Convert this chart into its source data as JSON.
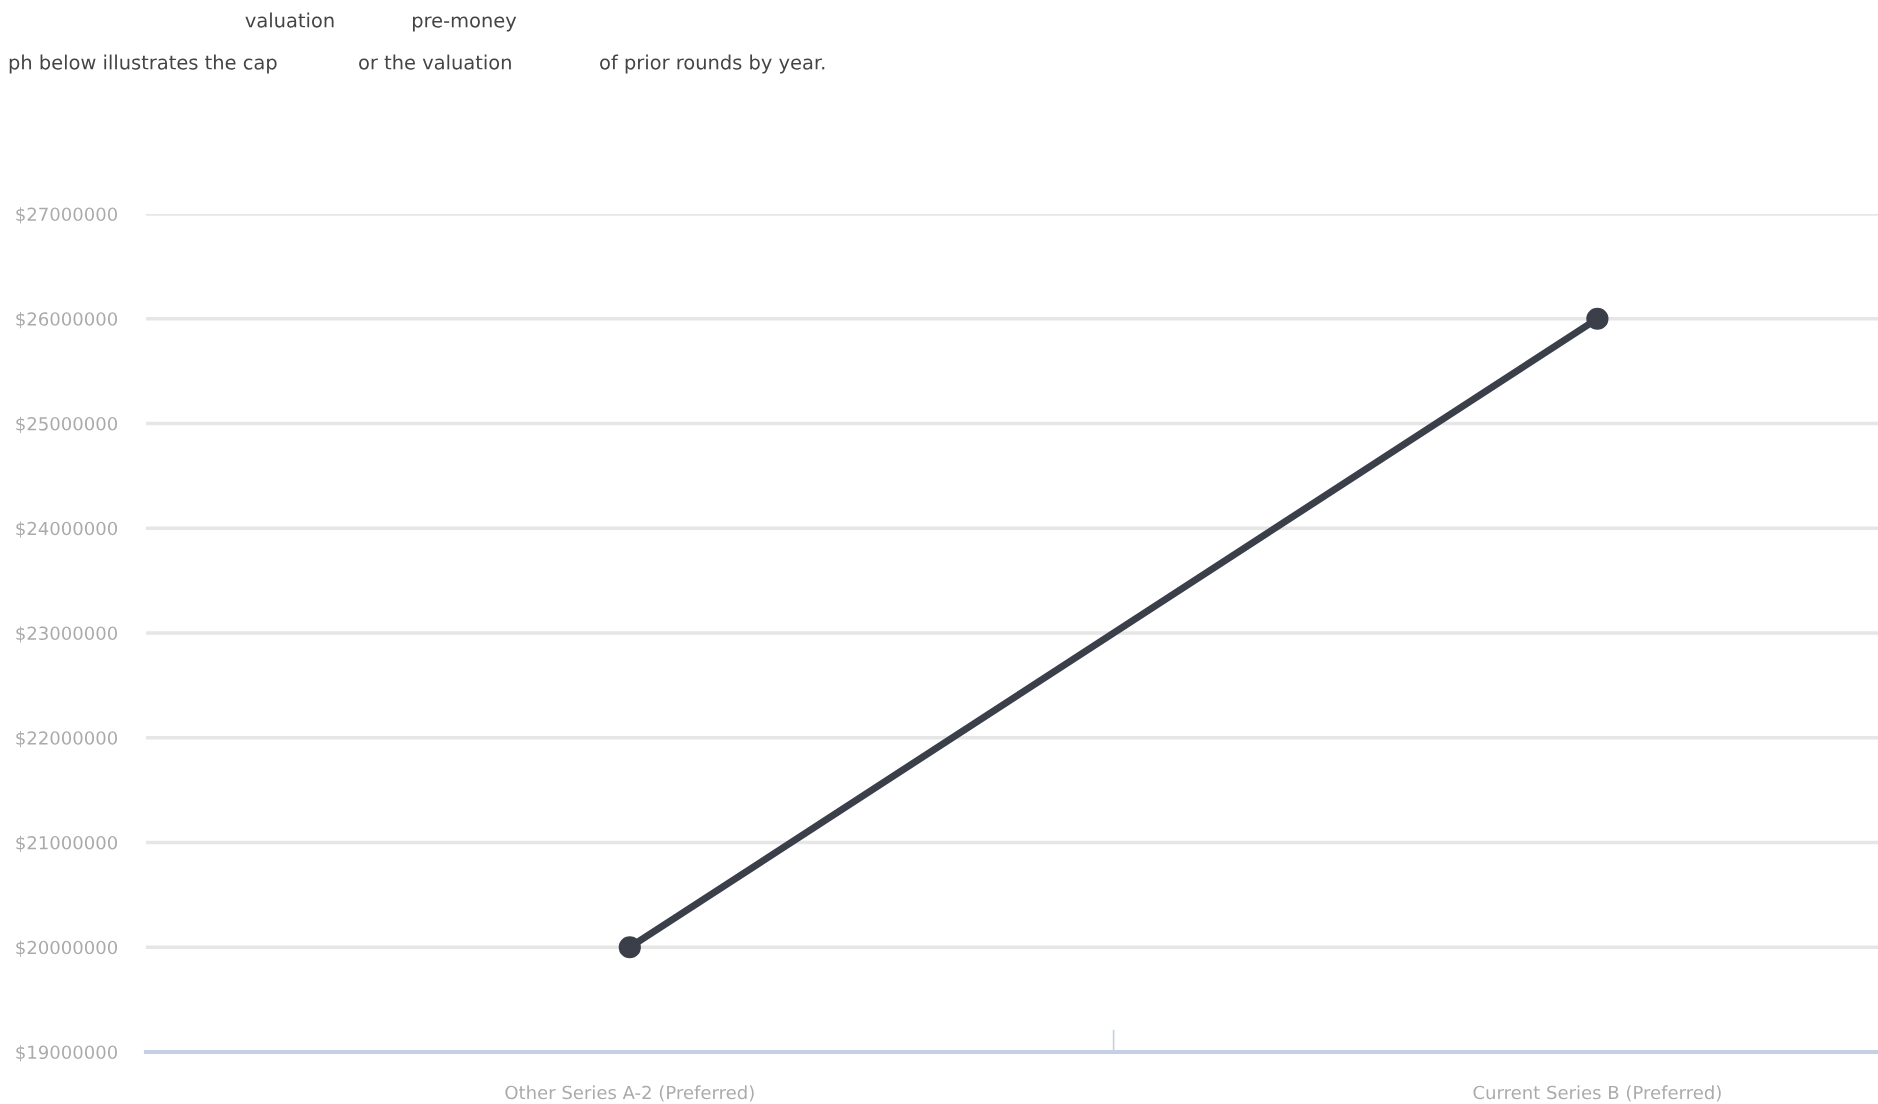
{
  "chart_data": {
    "type": "line",
    "title": "ph below illustrates the cap             or the valuation              of prior rounds by year.",
    "annotations": [
      "valuation",
      "pre-money"
    ],
    "categories": [
      "Other Series A-2 (Preferred)",
      "Current Series B (Preferred)"
    ],
    "series": [
      {
        "color": "#3a3f4a",
        "values": [
          20000000,
          26000000
        ]
      }
    ],
    "ylim": [
      19000000,
      27000000
    ],
    "yticks": [
      {
        "value": 19000000,
        "label": "$19000000"
      },
      {
        "value": 20000000,
        "label": "$20000000"
      },
      {
        "value": 21000000,
        "label": "$21000000"
      },
      {
        "value": 22000000,
        "label": "$22000000"
      },
      {
        "value": 23000000,
        "label": "$23000000"
      },
      {
        "value": 24000000,
        "label": "$24000000"
      },
      {
        "value": 25000000,
        "label": "$25000000"
      },
      {
        "value": 26000000,
        "label": "$26000000"
      },
      {
        "value": 27000000,
        "label": "$27000000"
      }
    ],
    "grid": "y",
    "marker": "circle",
    "line_style": "solid"
  }
}
